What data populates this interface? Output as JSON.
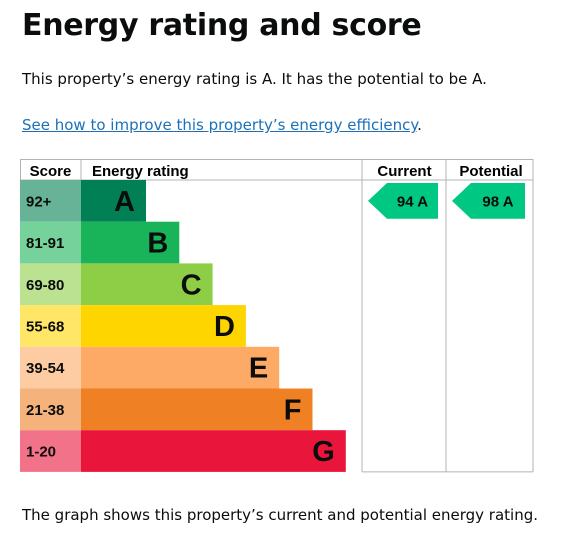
{
  "page": {
    "title": "Energy rating and score",
    "summary": "This property’s energy rating is A. It has the potential to be A.",
    "improve_link": "See how to improve this property’s energy efficiency",
    "improve_suffix": ".",
    "caption": "The graph shows this property’s current and potential energy rating."
  },
  "chart_data": {
    "type": "bar",
    "headers": {
      "score": "Score",
      "rating": "Energy rating",
      "current": "Current",
      "potential": "Potential"
    },
    "bands": [
      {
        "letter": "A",
        "range": "92+",
        "color": "#008054",
        "score_color": "#66b398"
      },
      {
        "letter": "B",
        "range": "81-91",
        "color": "#19b459",
        "score_color": "#75d29b"
      },
      {
        "letter": "C",
        "range": "69-80",
        "color": "#8dce46",
        "score_color": "#bbe290"
      },
      {
        "letter": "D",
        "range": "55-68",
        "color": "#ffd500",
        "score_color": "#ffe666"
      },
      {
        "letter": "E",
        "range": "39-54",
        "color": "#fcaa65",
        "score_color": "#fdcca3"
      },
      {
        "letter": "F",
        "range": "21-38",
        "color": "#ef8023",
        "score_color": "#f5b37b"
      },
      {
        "letter": "G",
        "range": "1-20",
        "color": "#e9153b",
        "score_color": "#f27389"
      }
    ],
    "current": {
      "value": 94,
      "band": "A",
      "label": "94  A"
    },
    "potential": {
      "value": 98,
      "band": "A",
      "label": "98  A"
    },
    "indicator_color": "#00c781"
  }
}
